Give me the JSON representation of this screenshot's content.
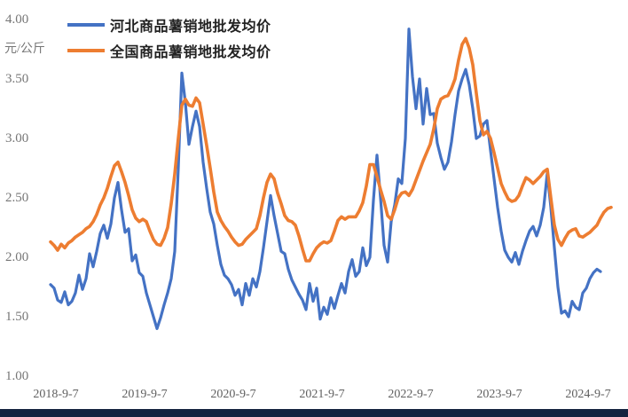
{
  "chart": {
    "unit_label": "元/公斤",
    "legend": [
      {
        "label": "河北商品薯销地批发均价",
        "color": "#4472C4"
      },
      {
        "label": "全国商品薯销地批发均价",
        "color": "#ED7D31"
      }
    ]
  },
  "chart_data": {
    "type": "line",
    "title": "",
    "xlabel": "",
    "ylabel": "元/公斤",
    "ylim": [
      1.0,
      4.0
    ],
    "y_tick_values": [
      4.0,
      3.5,
      3.0,
      2.5,
      2.0,
      1.5,
      1.0
    ],
    "y_tick_labels": [
      "4.00",
      "3.50",
      "3.00",
      "2.50",
      "2.00",
      "1.50",
      "1.00"
    ],
    "x_tick_labels": [
      "2018-9-7",
      "2019-9-7",
      "2020-9-7",
      "2021-9-7",
      "2022-9-7",
      "2023-9-7",
      "2024-9-7"
    ],
    "grid": false,
    "legend_position": "top-left",
    "x_note": "samples approximately bi-weekly from 2018-09 to 2024-11",
    "series": [
      {
        "name": "河北商品薯销地批发均价",
        "color": "#4472C4",
        "values": [
          1.77,
          1.74,
          1.64,
          1.62,
          1.71,
          1.6,
          1.63,
          1.7,
          1.85,
          1.73,
          1.82,
          2.03,
          1.92,
          2.05,
          2.2,
          2.27,
          2.16,
          2.28,
          2.5,
          2.63,
          2.4,
          2.21,
          2.24,
          1.97,
          2.02,
          1.87,
          1.84,
          1.7,
          1.6,
          1.5,
          1.4,
          1.49,
          1.6,
          1.7,
          1.82,
          2.05,
          2.75,
          3.55,
          3.3,
          2.95,
          3.1,
          3.23,
          3.1,
          2.8,
          2.58,
          2.38,
          2.28,
          2.1,
          1.94,
          1.85,
          1.82,
          1.77,
          1.68,
          1.73,
          1.6,
          1.78,
          1.68,
          1.82,
          1.75,
          1.88,
          2.08,
          2.3,
          2.52,
          2.35,
          2.2,
          2.05,
          2.03,
          1.9,
          1.81,
          1.75,
          1.69,
          1.64,
          1.56,
          1.78,
          1.63,
          1.74,
          1.48,
          1.58,
          1.52,
          1.66,
          1.57,
          1.68,
          1.78,
          1.7,
          1.88,
          1.98,
          1.84,
          1.88,
          2.08,
          1.93,
          2.0,
          2.48,
          2.86,
          2.5,
          2.1,
          1.96,
          2.3,
          2.44,
          2.66,
          2.62,
          3.0,
          3.92,
          3.52,
          3.25,
          3.5,
          3.12,
          3.42,
          3.2,
          3.21,
          2.96,
          2.84,
          2.74,
          2.8,
          2.97,
          3.2,
          3.4,
          3.5,
          3.58,
          3.45,
          3.25,
          3.0,
          3.02,
          3.12,
          3.15,
          2.9,
          2.66,
          2.42,
          2.22,
          2.06,
          2.0,
          1.96,
          2.04,
          1.94,
          2.05,
          2.14,
          2.22,
          2.26,
          2.18,
          2.27,
          2.42,
          2.71,
          2.42,
          2.08,
          1.75,
          1.53,
          1.55,
          1.5,
          1.63,
          1.58,
          1.56,
          1.7,
          1.74,
          1.82,
          1.87,
          1.9,
          1.88,
          null,
          null,
          null
        ]
      },
      {
        "name": "全国商品薯销地批发均价",
        "color": "#ED7D31",
        "values": [
          2.13,
          2.1,
          2.06,
          2.11,
          2.08,
          2.12,
          2.14,
          2.17,
          2.19,
          2.21,
          2.24,
          2.26,
          2.3,
          2.36,
          2.44,
          2.5,
          2.58,
          2.68,
          2.77,
          2.8,
          2.72,
          2.63,
          2.52,
          2.4,
          2.33,
          2.3,
          2.32,
          2.3,
          2.22,
          2.15,
          2.11,
          2.1,
          2.16,
          2.25,
          2.45,
          2.7,
          3.0,
          3.28,
          3.33,
          3.28,
          3.27,
          3.34,
          3.3,
          3.12,
          2.94,
          2.75,
          2.55,
          2.38,
          2.31,
          2.26,
          2.22,
          2.17,
          2.13,
          2.1,
          2.11,
          2.15,
          2.18,
          2.21,
          2.24,
          2.35,
          2.5,
          2.63,
          2.7,
          2.66,
          2.54,
          2.45,
          2.35,
          2.31,
          2.3,
          2.27,
          2.18,
          2.07,
          1.97,
          1.97,
          2.03,
          2.08,
          2.11,
          2.13,
          2.12,
          2.14,
          2.22,
          2.31,
          2.34,
          2.32,
          2.34,
          2.34,
          2.34,
          2.39,
          2.46,
          2.6,
          2.78,
          2.78,
          2.68,
          2.57,
          2.47,
          2.35,
          2.32,
          2.4,
          2.5,
          2.54,
          2.55,
          2.52,
          2.57,
          2.65,
          2.73,
          2.81,
          2.88,
          2.95,
          3.08,
          3.25,
          3.33,
          3.35,
          3.36,
          3.42,
          3.5,
          3.66,
          3.79,
          3.84,
          3.76,
          3.62,
          3.38,
          3.15,
          3.03,
          3.06,
          3.0,
          2.88,
          2.75,
          2.62,
          2.55,
          2.49,
          2.47,
          2.48,
          2.52,
          2.6,
          2.67,
          2.65,
          2.62,
          2.65,
          2.68,
          2.72,
          2.74,
          2.5,
          2.27,
          2.15,
          2.1,
          2.16,
          2.21,
          2.23,
          2.24,
          2.18,
          2.17,
          2.19,
          2.21,
          2.24,
          2.27,
          2.33,
          2.38,
          2.41,
          2.42
        ]
      }
    ]
  },
  "footer": {
    "bar_color": "#14233F"
  }
}
